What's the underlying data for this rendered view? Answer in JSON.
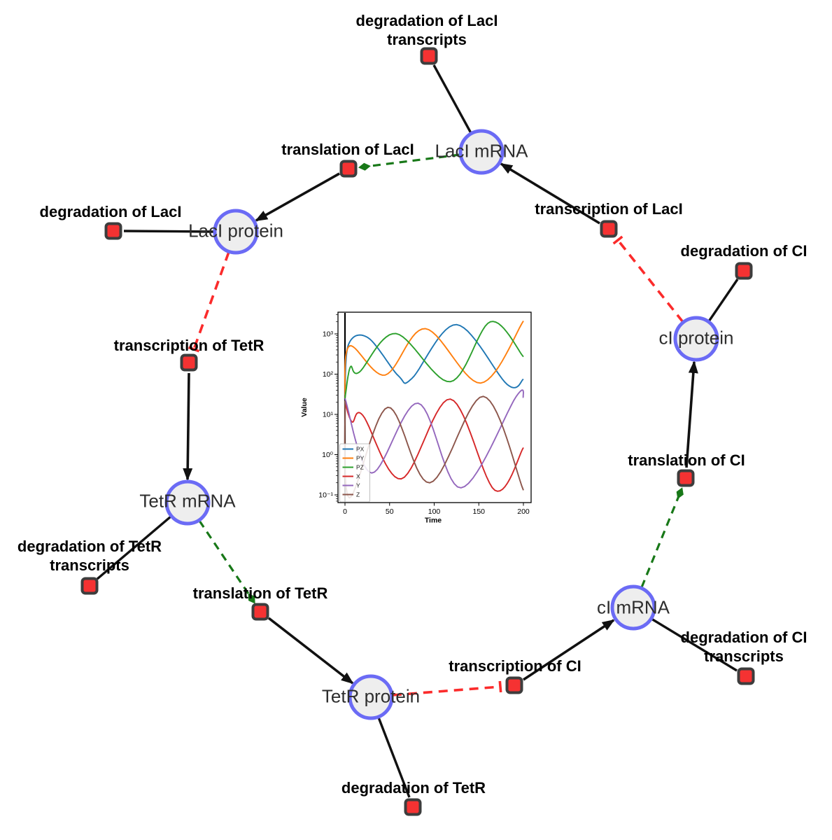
{
  "network": {
    "species": {
      "laci_mrna": {
        "label": "LacI mRNA"
      },
      "laci_protein": {
        "label": "LacI protein"
      },
      "tetr_mrna": {
        "label": "TetR mRNA"
      },
      "tetr_protein": {
        "label": "TetR protein"
      },
      "ci_mrna": {
        "label": "cI mRNA"
      },
      "ci_protein": {
        "label": "cI protein"
      }
    },
    "reactions": {
      "deg_laci_tx": {
        "lines": [
          "degradation of LacI",
          "transcripts"
        ]
      },
      "translation_laci": {
        "lines": [
          "translation of LacI"
        ]
      },
      "transcription_laci": {
        "lines": [
          "transcription of LacI"
        ]
      },
      "deg_laci": {
        "lines": [
          "degradation of LacI"
        ]
      },
      "transcription_tetr": {
        "lines": [
          "transcription of TetR"
        ]
      },
      "deg_ci": {
        "lines": [
          "degradation of CI"
        ]
      },
      "translation_ci": {
        "lines": [
          "translation of CI"
        ]
      },
      "deg_tetr_tx": {
        "lines": [
          "degradation of TetR",
          "transcripts"
        ]
      },
      "translation_tetr": {
        "lines": [
          "translation of TetR"
        ]
      },
      "transcription_ci": {
        "lines": [
          "transcription of CI"
        ]
      },
      "deg_ci_tx": {
        "lines": [
          "degradation of CI",
          "transcripts"
        ]
      },
      "deg_tetr": {
        "lines": [
          "degradation of TetR"
        ]
      }
    },
    "edges": [
      {
        "from": "LacI mRNA",
        "to": "degradation of LacI transcripts",
        "type": "consumption"
      },
      {
        "from": "LacI mRNA",
        "to": "translation of LacI",
        "type": "modifier"
      },
      {
        "from": "translation of LacI",
        "to": "LacI protein",
        "type": "production"
      },
      {
        "from": "LacI protein",
        "to": "degradation of LacI",
        "type": "consumption"
      },
      {
        "from": "LacI protein",
        "to": "transcription of TetR",
        "type": "inhibition"
      },
      {
        "from": "transcription of TetR",
        "to": "TetR mRNA",
        "type": "production"
      },
      {
        "from": "TetR mRNA",
        "to": "degradation of TetR transcripts",
        "type": "consumption"
      },
      {
        "from": "TetR mRNA",
        "to": "translation of TetR",
        "type": "modifier"
      },
      {
        "from": "translation of TetR",
        "to": "TetR protein",
        "type": "production"
      },
      {
        "from": "TetR protein",
        "to": "degradation of TetR",
        "type": "consumption"
      },
      {
        "from": "TetR protein",
        "to": "transcription of CI",
        "type": "inhibition"
      },
      {
        "from": "transcription of CI",
        "to": "cI mRNA",
        "type": "production"
      },
      {
        "from": "cI mRNA",
        "to": "degradation of CI transcripts",
        "type": "consumption"
      },
      {
        "from": "cI mRNA",
        "to": "translation of CI",
        "type": "modifier"
      },
      {
        "from": "translation of CI",
        "to": "cI protein",
        "type": "production"
      },
      {
        "from": "cI protein",
        "to": "degradation of CI",
        "type": "consumption"
      },
      {
        "from": "cI protein",
        "to": "transcription of LacI",
        "type": "inhibition"
      }
    ],
    "colors": {
      "species_fill": "#eeeeee",
      "species_border": "#6b6bf5",
      "reaction_fill": "#f53232",
      "reaction_border": "#3d3d3d",
      "production_edge": "#111111",
      "modifier_edge": "#187818",
      "inhibition_edge": "#fb2b2b"
    }
  },
  "chart_data": {
    "type": "line",
    "title": "",
    "xlabel": "Time",
    "ylabel": "Value",
    "y_scale": "log",
    "xlim": [
      -8,
      209
    ],
    "ylim_log10": [
      -1.19,
      3.54
    ],
    "x_ticks": [
      0,
      50,
      100,
      150,
      200
    ],
    "y_tick_exponents": [
      -1,
      0,
      1,
      2,
      3
    ],
    "y_tick_labels": [
      "10⁻¹",
      "10⁰",
      "10¹",
      "10²",
      "10³"
    ],
    "grid": false,
    "legend": {
      "position": "lower left",
      "entries": [
        "PX",
        "PY",
        "PZ",
        "X",
        "Y",
        "Z"
      ]
    },
    "annotations": [
      {
        "type": "vline",
        "x": 0,
        "color": "#000000"
      }
    ],
    "series": [
      {
        "name": "PX",
        "color": "#1f77b4",
        "points": [
          [
            0,
            30
          ],
          [
            4,
            550
          ],
          [
            26,
            800
          ],
          [
            60,
            90
          ],
          [
            75,
            78
          ],
          [
            125,
            1700
          ],
          [
            182,
            55
          ],
          [
            200,
            75
          ]
        ]
      },
      {
        "name": "PY",
        "color": "#ff7f0e",
        "points": [
          [
            0,
            25
          ],
          [
            5,
            500
          ],
          [
            45,
            95
          ],
          [
            90,
            1350
          ],
          [
            152,
            60
          ],
          [
            200,
            2100
          ]
        ]
      },
      {
        "name": "PZ",
        "color": "#2ca02c",
        "points": [
          [
            0,
            25
          ],
          [
            6,
            150
          ],
          [
            16,
            112
          ],
          [
            57,
            1020
          ],
          [
            118,
            65
          ],
          [
            163,
            2000
          ],
          [
            200,
            270
          ]
        ]
      },
      {
        "name": "X",
        "color": "#d62728",
        "points": [
          [
            0,
            20
          ],
          [
            8,
            6.5
          ],
          [
            20,
            9.5
          ],
          [
            63,
            0.25
          ],
          [
            118,
            24
          ],
          [
            168,
            0.13
          ],
          [
            200,
            1.5
          ]
        ]
      },
      {
        "name": "Y",
        "color": "#9467bd",
        "points": [
          [
            0,
            25
          ],
          [
            30,
            0.35
          ],
          [
            82,
            19
          ],
          [
            130,
            0.15
          ],
          [
            192,
            28
          ],
          [
            200,
            26
          ]
        ]
      },
      {
        "name": "Z",
        "color": "#8c564b",
        "points": [
          [
            0,
            22
          ],
          [
            5,
            0.085
          ],
          [
            48,
            15
          ],
          [
            95,
            0.2
          ],
          [
            155,
            28
          ],
          [
            200,
            0.13
          ]
        ]
      }
    ]
  }
}
